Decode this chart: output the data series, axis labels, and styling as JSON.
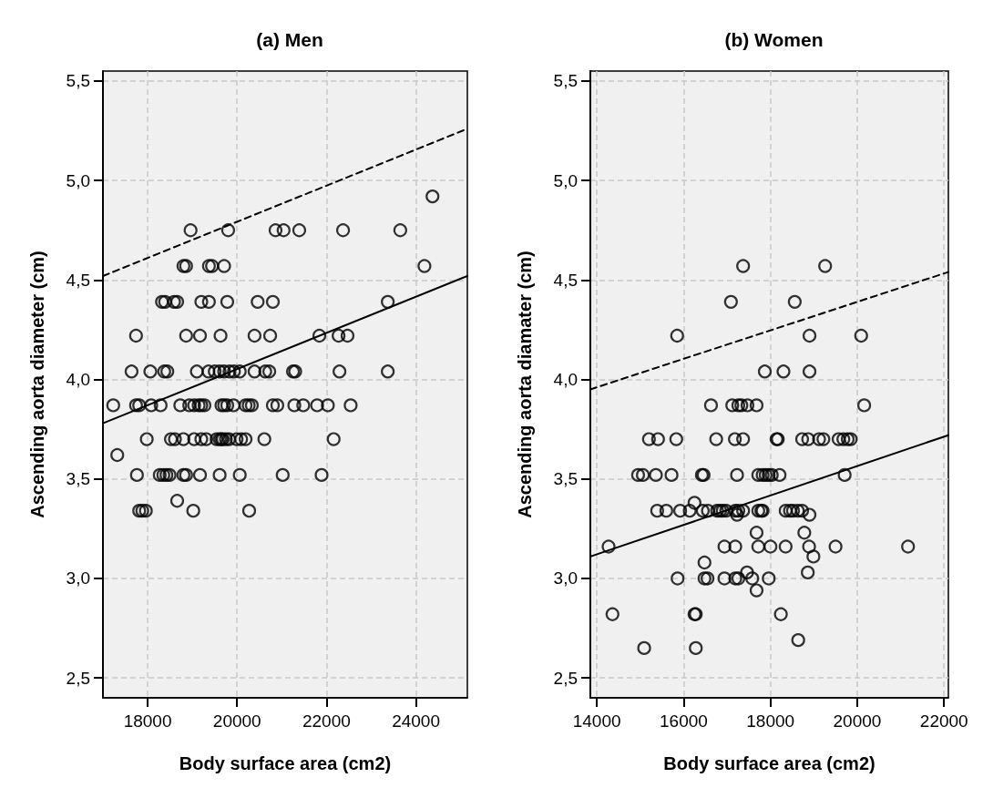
{
  "chart_data": [
    {
      "type": "scatter",
      "title": "(a) Men",
      "xlabel": "Body surface area (cm2)",
      "ylabel": "Ascending aorta diameter (cm)",
      "grid": true,
      "marker": "circle",
      "xlim": [
        17000,
        25150
      ],
      "xticks": [
        18000,
        20000,
        22000,
        24000
      ],
      "ylim": [
        2.4,
        5.55
      ],
      "yticks": [
        {
          "value": 2.5,
          "label": "2,5"
        },
        {
          "value": 3.0,
          "label": "3,0"
        },
        {
          "value": 3.5,
          "label": "3,5"
        },
        {
          "value": 4.0,
          "label": "4,0"
        },
        {
          "value": 4.5,
          "label": "4,5"
        },
        {
          "value": 5.0,
          "label": "5,0"
        },
        {
          "value": 5.5,
          "label": "5,5"
        }
      ],
      "series": [
        {
          "color": "#000000",
          "x": [
            24370,
            18960,
            19800,
            20860,
            21040,
            21390,
            22370,
            23650,
            18800,
            18860,
            19370,
            19440,
            19710,
            24190,
            18320,
            18390,
            18590,
            18660,
            19200,
            19370,
            19780,
            20460,
            20800,
            23370,
            17740,
            18860,
            19170,
            19630,
            20390,
            20740,
            21840,
            22270,
            22470,
            17640,
            18060,
            18370,
            18440,
            19100,
            19360,
            19500,
            19610,
            19710,
            19830,
            19930,
            20060,
            20390,
            20630,
            20720,
            21250,
            21300,
            22290,
            23370,
            17230,
            17740,
            17810,
            18080,
            18290,
            18730,
            18930,
            19040,
            19140,
            19200,
            19270,
            19650,
            19710,
            19780,
            19920,
            20190,
            20260,
            20330,
            20800,
            20900,
            21280,
            21480,
            21790,
            22030,
            22540,
            17980,
            18520,
            18610,
            18800,
            19040,
            19200,
            19310,
            19540,
            19610,
            19650,
            19680,
            19750,
            19820,
            19990,
            20090,
            20190,
            20610,
            22160,
            17320,
            17760,
            18270,
            18350,
            18420,
            18490,
            18800,
            18860,
            19170,
            19610,
            20060,
            21020,
            21890,
            18660,
            17810,
            17880,
            17960,
            19020,
            20270
          ],
          "values": [
            4.92,
            4.75,
            4.75,
            4.75,
            4.75,
            4.75,
            4.75,
            4.75,
            4.57,
            4.57,
            4.57,
            4.57,
            4.57,
            4.57,
            4.39,
            4.39,
            4.39,
            4.39,
            4.39,
            4.39,
            4.39,
            4.39,
            4.39,
            4.39,
            4.22,
            4.22,
            4.22,
            4.22,
            4.22,
            4.22,
            4.22,
            4.22,
            4.22,
            4.04,
            4.04,
            4.04,
            4.04,
            4.04,
            4.04,
            4.04,
            4.04,
            4.04,
            4.04,
            4.04,
            4.04,
            4.04,
            4.04,
            4.04,
            4.04,
            4.04,
            4.04,
            4.04,
            3.87,
            3.87,
            3.87,
            3.87,
            3.87,
            3.87,
            3.87,
            3.87,
            3.87,
            3.87,
            3.87,
            3.87,
            3.87,
            3.87,
            3.87,
            3.87,
            3.87,
            3.87,
            3.87,
            3.87,
            3.87,
            3.87,
            3.87,
            3.87,
            3.87,
            3.7,
            3.7,
            3.7,
            3.7,
            3.7,
            3.7,
            3.7,
            3.7,
            3.7,
            3.7,
            3.7,
            3.7,
            3.7,
            3.7,
            3.7,
            3.7,
            3.7,
            3.7,
            3.62,
            3.52,
            3.52,
            3.52,
            3.52,
            3.52,
            3.52,
            3.52,
            3.52,
            3.52,
            3.52,
            3.52,
            3.52,
            3.39,
            3.34,
            3.34,
            3.34,
            3.34,
            3.34
          ]
        },
        {
          "type": "line",
          "color": "#000000",
          "marker": "none",
          "line_style": "solid",
          "x": [
            17000,
            25150
          ],
          "values": [
            3.78,
            4.52
          ]
        },
        {
          "type": "line",
          "color": "#000000",
          "marker": "none",
          "line_style": "dashed",
          "x": [
            17000,
            25150
          ],
          "values": [
            4.52,
            5.26
          ]
        }
      ]
    },
    {
      "type": "scatter",
      "title": "(b) Women",
      "xlabel": "Body surface area (cm2)",
      "ylabel": "Ascending aorta diamater (cm)",
      "grid": true,
      "marker": "circle",
      "xlim": [
        13850,
        22100
      ],
      "xticks": [
        14000,
        16000,
        18000,
        20000,
        22000
      ],
      "ylim": [
        2.4,
        5.55
      ],
      "yticks": [
        {
          "value": 2.5,
          "label": "2,5"
        },
        {
          "value": 3.0,
          "label": "3,0"
        },
        {
          "value": 3.5,
          "label": "3,5"
        },
        {
          "value": 4.0,
          "label": "4,0"
        },
        {
          "value": 4.5,
          "label": "4,5"
        },
        {
          "value": 5.0,
          "label": "5,0"
        },
        {
          "value": 5.5,
          "label": "5,5"
        }
      ],
      "series": [
        {
          "color": "#000000",
          "x": [
            17370,
            19260,
            17090,
            18560,
            15850,
            18900,
            20090,
            17870,
            18300,
            18900,
            16630,
            17120,
            17260,
            17330,
            17470,
            17680,
            20160,
            15200,
            15410,
            15830,
            16750,
            17180,
            17370,
            18140,
            18170,
            18730,
            18870,
            19120,
            19220,
            19570,
            19680,
            19780,
            19850,
            14950,
            15060,
            15360,
            15720,
            16420,
            16460,
            17230,
            17720,
            17820,
            17890,
            17960,
            18030,
            18210,
            19710,
            16250,
            15390,
            15600,
            15920,
            16140,
            16440,
            16560,
            16770,
            16840,
            16900,
            16980,
            17190,
            17260,
            17370,
            17720,
            17790,
            17820,
            18350,
            18450,
            18520,
            18630,
            18730,
            17230,
            18900,
            17680,
            18780,
            14270,
            16940,
            17190,
            17720,
            18000,
            18350,
            18890,
            19500,
            21170,
            18990,
            16480,
            15860,
            16480,
            16550,
            16940,
            17190,
            17260,
            17580,
            17960,
            17460,
            18860,
            17680,
            14360,
            16250,
            16280,
            18240,
            18640,
            15090,
            16280
          ],
          "values": [
            4.57,
            4.57,
            4.39,
            4.39,
            4.22,
            4.22,
            4.22,
            4.04,
            4.04,
            4.04,
            3.87,
            3.87,
            3.87,
            3.87,
            3.87,
            3.87,
            3.87,
            3.7,
            3.7,
            3.7,
            3.7,
            3.7,
            3.7,
            3.7,
            3.7,
            3.7,
            3.7,
            3.7,
            3.7,
            3.7,
            3.7,
            3.7,
            3.7,
            3.52,
            3.52,
            3.52,
            3.52,
            3.52,
            3.52,
            3.52,
            3.52,
            3.52,
            3.52,
            3.52,
            3.52,
            3.52,
            3.52,
            3.38,
            3.34,
            3.34,
            3.34,
            3.34,
            3.34,
            3.34,
            3.34,
            3.34,
            3.34,
            3.34,
            3.34,
            3.34,
            3.34,
            3.34,
            3.34,
            3.34,
            3.34,
            3.34,
            3.34,
            3.34,
            3.34,
            3.32,
            3.32,
            3.23,
            3.23,
            3.16,
            3.16,
            3.16,
            3.16,
            3.16,
            3.16,
            3.16,
            3.16,
            3.16,
            3.11,
            3.08,
            3.0,
            3.0,
            3.0,
            3.0,
            3.0,
            3.0,
            3.0,
            3.0,
            3.03,
            3.03,
            2.94,
            2.82,
            2.82,
            2.82,
            2.82,
            2.69,
            2.65,
            2.65
          ]
        },
        {
          "type": "line",
          "color": "#000000",
          "marker": "none",
          "line_style": "solid",
          "x": [
            13850,
            22100
          ],
          "values": [
            3.11,
            3.72
          ]
        },
        {
          "type": "line",
          "color": "#000000",
          "marker": "none",
          "line_style": "dashed",
          "x": [
            13850,
            22100
          ],
          "values": [
            3.95,
            4.54
          ]
        }
      ]
    }
  ]
}
